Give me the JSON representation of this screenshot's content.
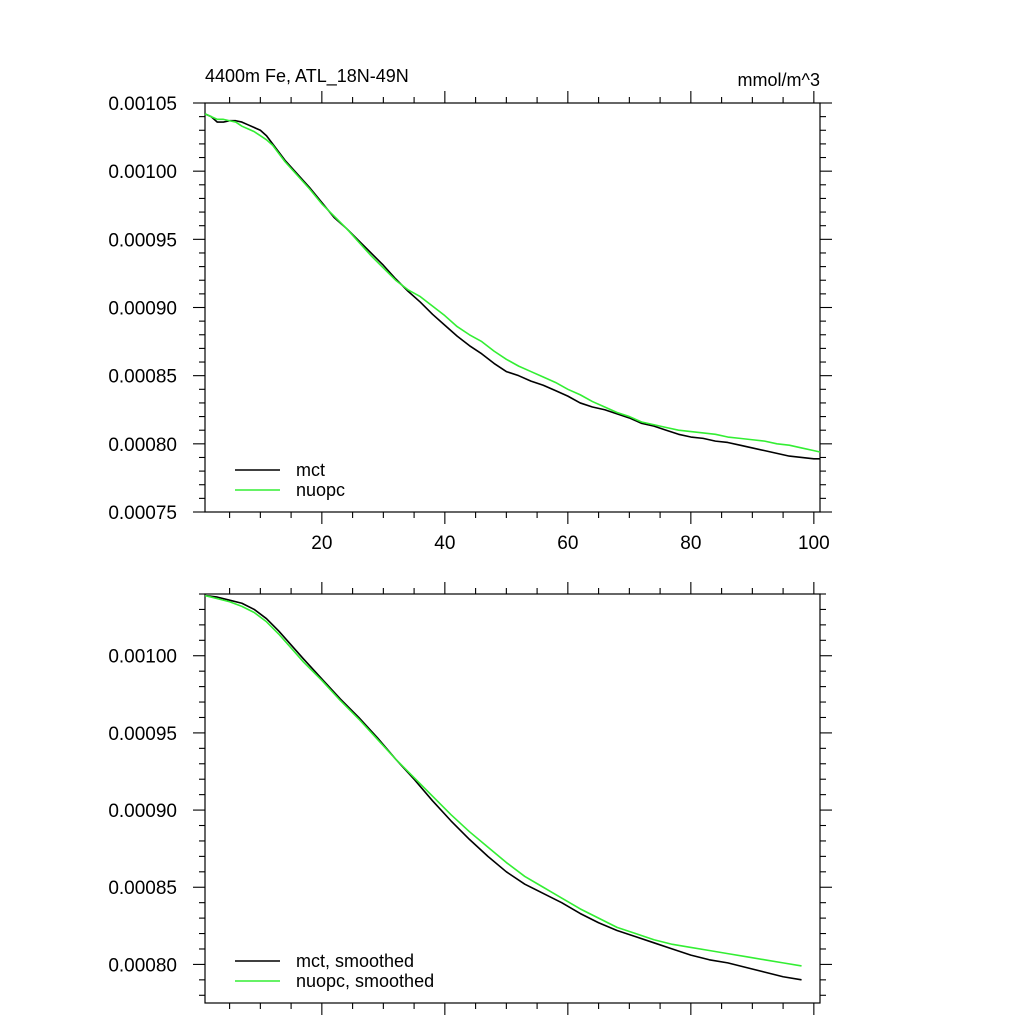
{
  "chart_data": [
    {
      "type": "line",
      "title_left": "4400m Fe, ATL_18N-49N",
      "title_right": "mmol/m^3",
      "xlim": [
        1,
        101
      ],
      "ylim": [
        0.00075,
        0.00105
      ],
      "xticks": [
        20,
        40,
        60,
        80,
        100
      ],
      "xtick_labels": [
        "20",
        "40",
        "60",
        "80",
        "100"
      ],
      "yticks": [
        0.00075,
        0.0008,
        0.00085,
        0.0009,
        0.00095,
        0.001,
        0.00105
      ],
      "ytick_labels": [
        "0.00075",
        "0.00080",
        "0.00085",
        "0.00090",
        "0.00095",
        "0.00100",
        "0.00105"
      ],
      "legend_position": "bottom-left",
      "series": [
        {
          "name": "mct",
          "color": "#000000",
          "x": [
            1,
            2,
            3,
            4,
            5,
            6,
            7,
            8,
            9,
            10,
            11,
            12,
            14,
            16,
            18,
            20,
            22,
            24,
            26,
            28,
            30,
            32,
            34,
            36,
            38,
            40,
            42,
            44,
            46,
            48,
            50,
            52,
            54,
            56,
            58,
            60,
            62,
            64,
            66,
            68,
            70,
            72,
            74,
            76,
            78,
            80,
            82,
            84,
            86,
            88,
            90,
            92,
            94,
            96,
            98,
            100,
            101
          ],
          "y": [
            0.001042,
            0.00104,
            0.001036,
            0.001036,
            0.001037,
            0.001037,
            0.001036,
            0.001034,
            0.001032,
            0.00103,
            0.001026,
            0.00102,
            0.001008,
            0.000998,
            0.000988,
            0.000977,
            0.000966,
            0.000958,
            0.000949,
            0.00094,
            0.000931,
            0.000921,
            0.000912,
            0.000904,
            0.000895,
            0.000887,
            0.000879,
            0.000872,
            0.000866,
            0.000859,
            0.000853,
            0.00085,
            0.000846,
            0.000843,
            0.000839,
            0.000835,
            0.00083,
            0.000827,
            0.000825,
            0.000822,
            0.000819,
            0.000815,
            0.000813,
            0.00081,
            0.000807,
            0.000805,
            0.000804,
            0.000802,
            0.000801,
            0.000799,
            0.000797,
            0.000795,
            0.000793,
            0.000791,
            0.00079,
            0.000789,
            0.000789
          ]
        },
        {
          "name": "nuopc",
          "color": "#33ee33",
          "x": [
            1,
            2,
            3,
            4,
            5,
            6,
            7,
            8,
            9,
            10,
            11,
            12,
            14,
            16,
            18,
            20,
            22,
            24,
            26,
            28,
            30,
            32,
            34,
            36,
            38,
            40,
            42,
            44,
            46,
            48,
            50,
            52,
            54,
            56,
            58,
            60,
            62,
            64,
            66,
            68,
            70,
            72,
            74,
            76,
            78,
            80,
            82,
            84,
            86,
            88,
            90,
            92,
            94,
            96,
            98,
            100,
            101
          ],
          "y": [
            0.001042,
            0.00104,
            0.001038,
            0.001038,
            0.001037,
            0.001036,
            0.001033,
            0.001031,
            0.001029,
            0.001026,
            0.001023,
            0.001019,
            0.001007,
            0.000997,
            0.000987,
            0.000976,
            0.000967,
            0.000958,
            0.000948,
            0.000938,
            0.000929,
            0.00092,
            0.000913,
            0.000908,
            0.000901,
            0.000894,
            0.000886,
            0.00088,
            0.000875,
            0.000868,
            0.000862,
            0.000857,
            0.000853,
            0.000849,
            0.000845,
            0.00084,
            0.000836,
            0.000831,
            0.000827,
            0.000823,
            0.00082,
            0.000816,
            0.000814,
            0.000812,
            0.00081,
            0.000809,
            0.000808,
            0.000807,
            0.000805,
            0.000804,
            0.000803,
            0.000802,
            0.0008,
            0.000799,
            0.000797,
            0.000795,
            0.000794
          ]
        }
      ]
    },
    {
      "type": "line",
      "xlim": [
        1,
        101
      ],
      "ylim": [
        0.000775,
        0.00104
      ],
      "xticks": [
        20,
        40,
        60,
        80,
        100
      ],
      "xtick_labels": [],
      "yticks": [
        0.0008,
        0.00085,
        0.0009,
        0.00095,
        0.001
      ],
      "ytick_labels": [
        "0.00080",
        "0.00085",
        "0.00090",
        "0.00095",
        "0.00100"
      ],
      "legend_position": "bottom-left",
      "series": [
        {
          "name": "mct, smoothed",
          "color": "#000000",
          "x": [
            1,
            3,
            5,
            7,
            9,
            11,
            13,
            15,
            17,
            20,
            23,
            26,
            29,
            32,
            35,
            38,
            41,
            44,
            47,
            50,
            53,
            56,
            59,
            62,
            65,
            68,
            71,
            74,
            77,
            80,
            83,
            86,
            89,
            92,
            95,
            98
          ],
          "y": [
            0.001039,
            0.001038,
            0.001036,
            0.001034,
            0.00103,
            0.001024,
            0.001016,
            0.001007,
            0.000998,
            0.000985,
            0.000972,
            0.00096,
            0.000947,
            0.000933,
            0.00092,
            0.000906,
            0.000893,
            0.000881,
            0.00087,
            0.00086,
            0.000852,
            0.000846,
            0.00084,
            0.000833,
            0.000827,
            0.000822,
            0.000818,
            0.000814,
            0.00081,
            0.000806,
            0.000803,
            0.000801,
            0.000798,
            0.000795,
            0.000792,
            0.00079
          ]
        },
        {
          "name": "nuopc, smoothed",
          "color": "#33ee33",
          "x": [
            1,
            3,
            5,
            7,
            9,
            11,
            13,
            15,
            17,
            20,
            23,
            26,
            29,
            32,
            35,
            38,
            41,
            44,
            47,
            50,
            53,
            56,
            59,
            62,
            65,
            68,
            71,
            74,
            77,
            80,
            83,
            86,
            89,
            92,
            95,
            98
          ],
          "y": [
            0.001039,
            0.001037,
            0.001035,
            0.001032,
            0.001028,
            0.001022,
            0.001014,
            0.001005,
            0.000996,
            0.000984,
            0.000971,
            0.000959,
            0.000946,
            0.000933,
            0.000921,
            0.000909,
            0.000897,
            0.000886,
            0.000876,
            0.000866,
            0.000857,
            0.00085,
            0.000843,
            0.000836,
            0.00083,
            0.000824,
            0.00082,
            0.000816,
            0.000813,
            0.000811,
            0.000809,
            0.000807,
            0.000805,
            0.000803,
            0.000801,
            0.000799
          ]
        }
      ]
    }
  ]
}
